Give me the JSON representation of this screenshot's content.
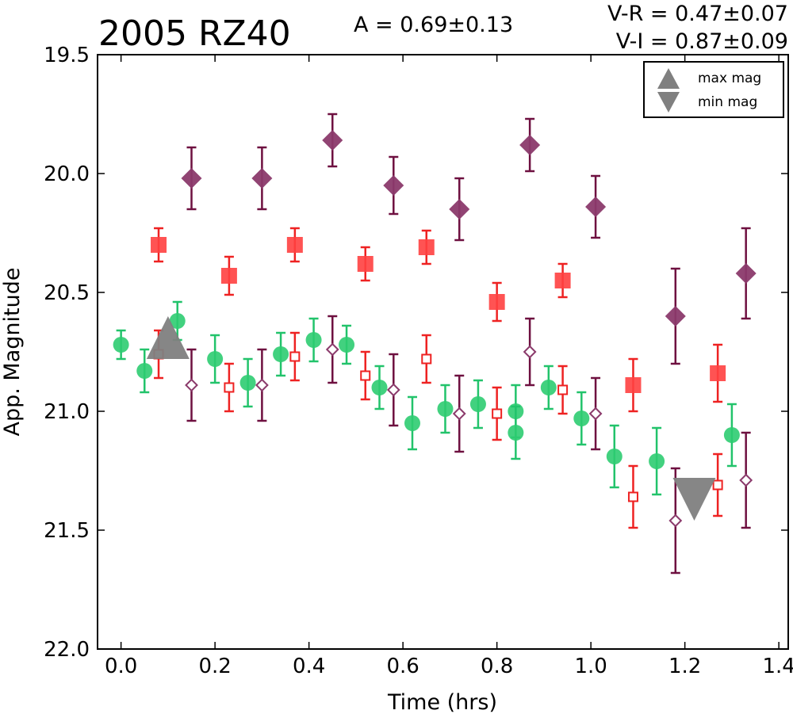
{
  "chart_data": {
    "type": "scatter",
    "title": "2005 RZ40",
    "amplitude_label": "A  = 0.69±0.13",
    "color_indices": [
      "V-R = 0.47±0.07",
      "V-I  = 0.87±0.09"
    ],
    "xlabel": "Time (hrs)",
    "ylabel": "App. Magnitude",
    "xlim": [
      -0.05,
      1.42
    ],
    "ylim": [
      22.0,
      19.5
    ],
    "y_inverted": true,
    "xticks": [
      "0.0",
      "0.2",
      "0.4",
      "0.6",
      "0.8",
      "1.0",
      "1.2",
      "1.4"
    ],
    "yticks": [
      "19.5",
      "20.0",
      "20.5",
      "21.0",
      "21.5",
      "22.0"
    ],
    "grid": false,
    "legend_position": "top-right",
    "legend": [
      {
        "label": "max mag",
        "marker": "triangle-up",
        "color": "#808080"
      },
      {
        "label": "min mag",
        "marker": "triangle-down",
        "color": "#808080"
      }
    ],
    "series": [
      {
        "marker": "circle",
        "filled": true,
        "color": "#2ecc71",
        "error_color": "#22c36b",
        "points": [
          {
            "x": 0.0,
            "y": 20.72,
            "err": 0.06
          },
          {
            "x": 0.05,
            "y": 20.83,
            "err": 0.09
          },
          {
            "x": 0.12,
            "y": 20.62,
            "err": 0.08
          },
          {
            "x": 0.2,
            "y": 20.78,
            "err": 0.1
          },
          {
            "x": 0.27,
            "y": 20.88,
            "err": 0.1
          },
          {
            "x": 0.34,
            "y": 20.76,
            "err": 0.09
          },
          {
            "x": 0.41,
            "y": 20.7,
            "err": 0.09
          },
          {
            "x": 0.48,
            "y": 20.72,
            "err": 0.08
          },
          {
            "x": 0.55,
            "y": 20.9,
            "err": 0.09
          },
          {
            "x": 0.62,
            "y": 21.05,
            "err": 0.11
          },
          {
            "x": 0.69,
            "y": 20.99,
            "err": 0.1
          },
          {
            "x": 0.76,
            "y": 20.97,
            "err": 0.1
          },
          {
            "x": 0.84,
            "y": 21.0,
            "err": 0.11
          },
          {
            "x": 0.84,
            "y": 21.09,
            "err": 0.11
          },
          {
            "x": 0.91,
            "y": 20.9,
            "err": 0.09
          },
          {
            "x": 0.98,
            "y": 21.03,
            "err": 0.11
          },
          {
            "x": 1.05,
            "y": 21.19,
            "err": 0.13
          },
          {
            "x": 1.14,
            "y": 21.21,
            "err": 0.14
          },
          {
            "x": 1.3,
            "y": 21.1,
            "err": 0.13
          }
        ]
      },
      {
        "marker": "square",
        "filled": true,
        "color": "#ff4040",
        "error_color": "#ee2222",
        "points": [
          {
            "x": 0.08,
            "y": 20.3,
            "err": 0.07
          },
          {
            "x": 0.23,
            "y": 20.43,
            "err": 0.08
          },
          {
            "x": 0.37,
            "y": 20.3,
            "err": 0.07
          },
          {
            "x": 0.52,
            "y": 20.38,
            "err": 0.07
          },
          {
            "x": 0.65,
            "y": 20.31,
            "err": 0.07
          },
          {
            "x": 0.8,
            "y": 20.54,
            "err": 0.08
          },
          {
            "x": 0.94,
            "y": 20.45,
            "err": 0.07
          },
          {
            "x": 1.09,
            "y": 20.89,
            "err": 0.11
          },
          {
            "x": 1.27,
            "y": 20.84,
            "err": 0.12
          }
        ]
      },
      {
        "marker": "square",
        "filled": false,
        "color": "#ee2222",
        "error_color": "#ee2222",
        "points": [
          {
            "x": 0.08,
            "y": 20.76,
            "err": 0.1
          },
          {
            "x": 0.23,
            "y": 20.9,
            "err": 0.1
          },
          {
            "x": 0.37,
            "y": 20.77,
            "err": 0.1
          },
          {
            "x": 0.52,
            "y": 20.85,
            "err": 0.1
          },
          {
            "x": 0.65,
            "y": 20.78,
            "err": 0.1
          },
          {
            "x": 0.8,
            "y": 21.01,
            "err": 0.11
          },
          {
            "x": 0.94,
            "y": 20.91,
            "err": 0.1
          },
          {
            "x": 1.09,
            "y": 21.36,
            "err": 0.13
          },
          {
            "x": 1.27,
            "y": 21.31,
            "err": 0.13
          }
        ]
      },
      {
        "marker": "diamond",
        "filled": true,
        "color": "#8b3a6b",
        "error_color": "#6e1040",
        "points": [
          {
            "x": 0.15,
            "y": 20.02,
            "err": 0.13
          },
          {
            "x": 0.3,
            "y": 20.02,
            "err": 0.13
          },
          {
            "x": 0.45,
            "y": 19.86,
            "err": 0.11
          },
          {
            "x": 0.58,
            "y": 20.05,
            "err": 0.12
          },
          {
            "x": 0.72,
            "y": 20.15,
            "err": 0.13
          },
          {
            "x": 0.87,
            "y": 19.88,
            "err": 0.11
          },
          {
            "x": 1.01,
            "y": 20.14,
            "err": 0.13
          },
          {
            "x": 1.18,
            "y": 20.6,
            "err": 0.2
          },
          {
            "x": 1.33,
            "y": 20.42,
            "err": 0.19
          }
        ]
      },
      {
        "marker": "diamond",
        "filled": false,
        "color": "#8b3a6b",
        "error_color": "#6e1040",
        "points": [
          {
            "x": 0.15,
            "y": 20.89,
            "err": 0.15
          },
          {
            "x": 0.3,
            "y": 20.89,
            "err": 0.15
          },
          {
            "x": 0.45,
            "y": 20.74,
            "err": 0.14
          },
          {
            "x": 0.58,
            "y": 20.91,
            "err": 0.15
          },
          {
            "x": 0.72,
            "y": 21.01,
            "err": 0.16
          },
          {
            "x": 0.87,
            "y": 20.75,
            "err": 0.14
          },
          {
            "x": 1.01,
            "y": 21.01,
            "err": 0.15
          },
          {
            "x": 1.18,
            "y": 21.46,
            "err": 0.22
          },
          {
            "x": 1.33,
            "y": 21.29,
            "err": 0.2
          }
        ]
      }
    ],
    "extrema_markers": [
      {
        "type": "max",
        "marker": "triangle-up",
        "x": 0.1,
        "y": 20.69,
        "color": "#808080"
      },
      {
        "type": "min",
        "marker": "triangle-down",
        "x": 1.22,
        "y": 21.37,
        "color": "#808080"
      }
    ]
  }
}
